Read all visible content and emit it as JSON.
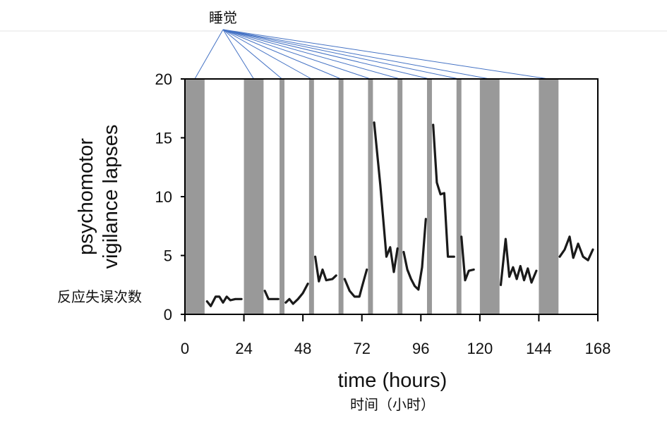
{
  "chart_data": {
    "type": "line",
    "x_unit": "hours",
    "xlabel": "time (hours)",
    "xlabel_translation": "时间（小时）",
    "ylabel": [
      "psychomotor",
      "vigilance lapses"
    ],
    "ylabel_translation": "反应失误次数",
    "sleep_label": "睡觉",
    "xlim": [
      0,
      168
    ],
    "ylim": [
      0,
      20
    ],
    "x_ticks": [
      0,
      24,
      48,
      72,
      96,
      120,
      144,
      168
    ],
    "y_ticks": [
      0,
      5,
      10,
      15,
      20
    ],
    "grid": false,
    "sleep_periods": [
      [
        0,
        8
      ],
      [
        24,
        32
      ],
      [
        38.5,
        40.5
      ],
      [
        50.5,
        52.5
      ],
      [
        62.5,
        64.5
      ],
      [
        74.5,
        76.5
      ],
      [
        86.5,
        88.5
      ],
      [
        98.5,
        100.5
      ],
      [
        110.5,
        112.5
      ],
      [
        120,
        128
      ],
      [
        144,
        152
      ]
    ],
    "series": [
      {
        "values": [
          [
            [
              9,
              1.1
            ],
            [
              10.5,
              0.7
            ],
            [
              12.5,
              1.5
            ],
            [
              14,
              1.5
            ],
            [
              15.5,
              1.0
            ],
            [
              17,
              1.5
            ],
            [
              18.5,
              1.2
            ],
            [
              20.5,
              1.3
            ],
            [
              23,
              1.3
            ]
          ],
          [
            [
              32.5,
              2.0
            ],
            [
              34,
              1.3
            ],
            [
              38,
              1.3
            ]
          ],
          [
            [
              41,
              1.0
            ],
            [
              42.5,
              1.3
            ],
            [
              44,
              0.9
            ],
            [
              46,
              1.3
            ],
            [
              48,
              1.8
            ],
            [
              50,
              2.6
            ]
          ],
          [
            [
              53,
              4.9
            ],
            [
              54.5,
              2.8
            ],
            [
              56,
              3.8
            ],
            [
              57.5,
              2.9
            ],
            [
              60,
              3.0
            ],
            [
              61.5,
              3.3
            ]
          ],
          [
            [
              65,
              3.0
            ],
            [
              67,
              2.0
            ],
            [
              69,
              1.5
            ],
            [
              71,
              1.5
            ],
            [
              72,
              2.3
            ],
            [
              74,
              3.8
            ]
          ],
          [
            [
              77,
              16.3
            ],
            [
              79.5,
              11.0
            ],
            [
              82,
              4.9
            ],
            [
              83.5,
              5.7
            ],
            [
              85,
              3.6
            ],
            [
              86.5,
              5.6
            ]
          ],
          [
            [
              89,
              5.3
            ],
            [
              90.5,
              3.8
            ],
            [
              92,
              3.0
            ],
            [
              93.5,
              2.4
            ],
            [
              95,
              2.1
            ],
            [
              96.5,
              4.0
            ],
            [
              98,
              8.1
            ]
          ],
          [
            [
              101,
              16.1
            ],
            [
              102.5,
              11.2
            ],
            [
              104,
              10.2
            ],
            [
              105.5,
              10.3
            ],
            [
              107,
              4.9
            ],
            [
              109.5,
              4.9
            ]
          ],
          [
            [
              112.5,
              6.6
            ],
            [
              114,
              2.9
            ],
            [
              115.5,
              3.7
            ],
            [
              117.5,
              3.8
            ]
          ],
          [
            [
              128.5,
              2.5
            ],
            [
              130.5,
              6.4
            ],
            [
              132,
              3.2
            ],
            [
              133.5,
              4.0
            ],
            [
              135,
              3.0
            ],
            [
              136.5,
              4.1
            ],
            [
              138,
              2.9
            ],
            [
              139.5,
              3.9
            ],
            [
              141,
              2.7
            ],
            [
              143,
              3.7
            ]
          ],
          [
            [
              152.5,
              4.9
            ],
            [
              154.5,
              5.5
            ],
            [
              156.5,
              6.6
            ],
            [
              158,
              4.8
            ],
            [
              160,
              6.0
            ],
            [
              162,
              4.9
            ],
            [
              164,
              4.6
            ],
            [
              166,
              5.5
            ]
          ]
        ]
      }
    ],
    "colors": {
      "line": "#1a1a1a",
      "sleep_band": "#999999",
      "sleep_leader": "#4472c4"
    }
  }
}
